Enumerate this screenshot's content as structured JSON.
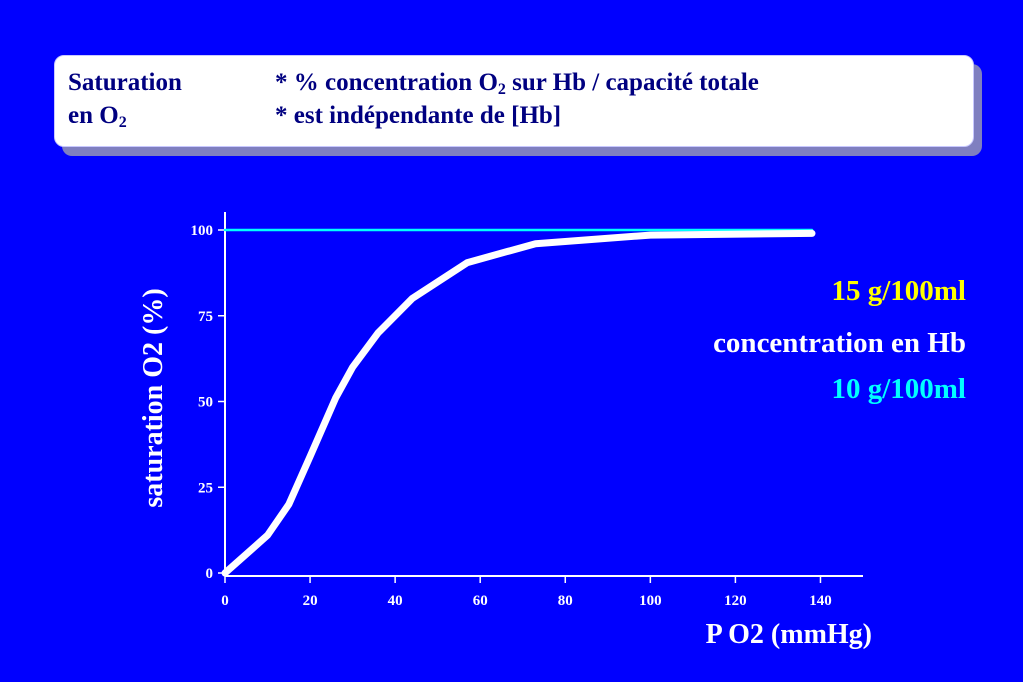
{
  "header": {
    "label_line1": "Saturation",
    "label_line2_main": "en O",
    "label_line2_sub": "2",
    "text_line1_pre": "* % concentration O",
    "text_line1_sub": "2",
    "text_line1_post": " sur Hb / capacité totale",
    "text_line2": "* est indépendante de [Hb]"
  },
  "legend": {
    "hb15": "15 g/100ml",
    "title": "concentration en Hb",
    "hb10": "10 g/100ml"
  },
  "colors": {
    "background": "#0000ff",
    "curve_15": "#ffffff",
    "line_10": "#00ffff",
    "legend_15": "#ffff00",
    "legend_10": "#00ffff"
  },
  "chart_data": {
    "type": "line",
    "xlabel": "P O2 (mmHg)",
    "ylabel": "saturation O2 (%)",
    "xlim": [
      0,
      150
    ],
    "ylim": [
      0,
      100
    ],
    "x_ticks": [
      0,
      20,
      40,
      60,
      80,
      100,
      120,
      140
    ],
    "y_ticks": [
      0,
      25,
      50,
      75,
      100
    ],
    "grid": false,
    "series": [
      {
        "name": "15 g/100ml",
        "color": "#ffffff",
        "x": [
          0,
          10,
          15,
          20,
          26,
          30,
          36,
          44,
          57,
          73,
          100,
          138
        ],
        "y": [
          0,
          11,
          20,
          34,
          51,
          60,
          70,
          80,
          90.5,
          96,
          98.5,
          99
        ]
      },
      {
        "name": "10 g/100ml",
        "color": "#00ffff",
        "x": [
          0,
          138
        ],
        "y": [
          100,
          100
        ]
      }
    ]
  }
}
